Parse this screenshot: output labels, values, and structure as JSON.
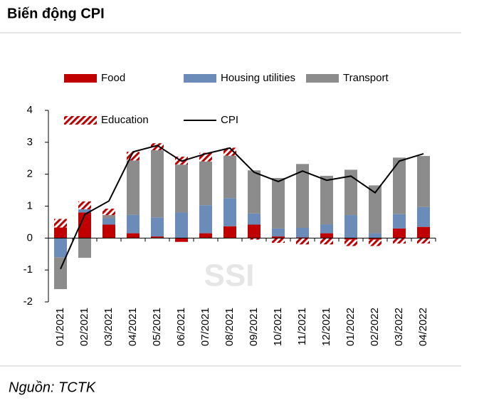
{
  "chart_data": {
    "type": "stacked-bar-line",
    "title": "Biến động CPI",
    "source": "Nguồn: TCTK",
    "watermark": "SSI",
    "categories": [
      "01/2021",
      "02/2021",
      "03/2021",
      "04/2021",
      "05/2021",
      "06/2021",
      "07/2021",
      "08/2021",
      "09/2021",
      "10/2021",
      "11/2021",
      "12/2021",
      "01/2022",
      "02/2022",
      "03/2022",
      "04/2022"
    ],
    "series": [
      {
        "name": "Food",
        "color": "#c00000",
        "kind": "bar",
        "values": [
          0.33,
          0.8,
          0.42,
          0.15,
          0.05,
          -0.12,
          0.15,
          0.37,
          0.42,
          0.05,
          0.02,
          0.15,
          -0.05,
          -0.05,
          0.3,
          0.35
        ]
      },
      {
        "name": "Housing utilities",
        "color": "#6b8cb8",
        "kind": "bar",
        "values": [
          -0.6,
          0.1,
          0.2,
          0.58,
          0.6,
          0.8,
          0.88,
          0.88,
          0.35,
          0.25,
          0.3,
          0.28,
          0.72,
          0.15,
          0.45,
          0.62
        ]
      },
      {
        "name": "Transport",
        "color": "#8c8c8c",
        "kind": "bar",
        "values": [
          -1.0,
          -0.62,
          0.1,
          1.7,
          2.1,
          1.5,
          1.37,
          1.33,
          1.35,
          1.58,
          2.0,
          1.52,
          1.42,
          1.5,
          1.77,
          1.6
        ]
      },
      {
        "name": "Education",
        "color": "#c00000",
        "kind": "bar",
        "pattern": "hatch",
        "values": [
          0.27,
          0.25,
          0.2,
          0.27,
          0.22,
          0.25,
          0.27,
          0.25,
          -0.05,
          -0.15,
          -0.2,
          -0.2,
          -0.2,
          -0.2,
          -0.17,
          -0.17
        ]
      },
      {
        "name": "CPI",
        "color": "#000000",
        "kind": "line",
        "values": [
          -0.97,
          0.74,
          1.16,
          2.7,
          2.9,
          2.41,
          2.64,
          2.82,
          2.06,
          1.77,
          2.1,
          1.81,
          1.94,
          1.42,
          2.41,
          2.64
        ]
      }
    ],
    "ylim": [
      -2,
      4
    ],
    "yticks": [
      -2,
      -1,
      0,
      1,
      2,
      3,
      4
    ]
  }
}
